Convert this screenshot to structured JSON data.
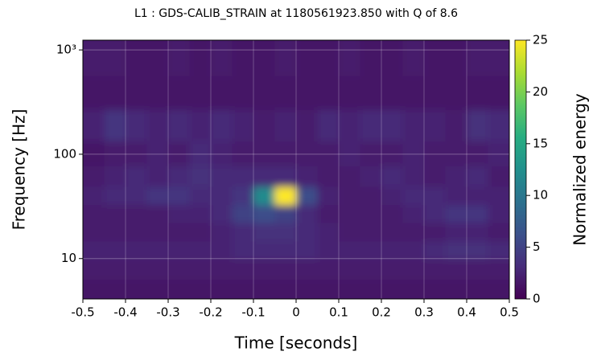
{
  "chart_data": {
    "type": "heatmap",
    "title": "L1 : GDS-CALIB_STRAIN at 1180561923.850 with Q of 8.6",
    "x_label": "Time [seconds]",
    "y_label": "Frequency [Hz]",
    "colorbar_label": "Normalized energy",
    "colormap": "viridis",
    "log_y": true,
    "grid": true,
    "xlim": [
      -0.5,
      0.5
    ],
    "xticks": [
      -0.5,
      -0.4,
      -0.3,
      -0.2,
      -0.1,
      0,
      0.1,
      0.2,
      0.3,
      0.4,
      0.5
    ],
    "ylim": [
      4.1,
      1240
    ],
    "yticks": [
      10,
      100,
      {
        "value": 1000,
        "label": "10³"
      }
    ],
    "clim": [
      0,
      25
    ],
    "cticks": [
      0,
      5,
      10,
      15,
      20,
      25
    ],
    "x": [
      -0.475,
      -0.425,
      -0.375,
      -0.325,
      -0.275,
      -0.225,
      -0.175,
      -0.125,
      -0.075,
      -0.025,
      0.025,
      0.075,
      0.125,
      0.175,
      0.225,
      0.275,
      0.325,
      0.375,
      0.425,
      0.475
    ],
    "y": [
      5,
      8,
      12,
      18,
      27,
      40,
      60,
      100,
      180,
      400,
      800
    ],
    "values": [
      [
        1.5,
        1.5,
        1.5,
        1.5,
        1.5,
        1.5,
        1.5,
        1.5,
        1.5,
        1.5,
        1.5,
        1.5,
        1.5,
        1.5,
        1.5,
        1.5,
        1.5,
        1.5,
        1.5,
        1.5
      ],
      [
        2,
        2,
        2,
        2,
        2,
        2,
        2,
        2,
        2,
        2,
        2,
        2,
        2,
        2,
        2,
        2,
        2,
        2,
        2,
        2
      ],
      [
        2.5,
        2.5,
        2.5,
        2.5,
        2.5,
        2.5,
        2.5,
        3,
        3,
        3,
        3,
        2.5,
        2.5,
        2.5,
        2.5,
        2.5,
        3,
        3.5,
        3.5,
        3
      ],
      [
        2,
        2,
        2,
        2,
        2,
        2,
        2.5,
        3,
        3.5,
        3.5,
        3,
        2.5,
        2,
        2,
        2,
        2,
        2,
        2.5,
        2.5,
        2
      ],
      [
        2,
        2,
        2,
        2,
        2.5,
        2.5,
        3,
        5,
        6,
        5,
        3,
        2,
        2,
        2,
        2,
        2.5,
        3,
        4,
        4,
        2.5
      ],
      [
        2.5,
        3,
        3,
        4,
        4,
        3,
        3,
        4,
        12,
        25,
        6,
        2.5,
        2,
        2,
        2.5,
        3,
        3,
        2.5,
        2.5,
        2.5
      ],
      [
        2,
        2.5,
        3,
        2.5,
        3,
        3.5,
        3,
        3,
        3,
        3,
        2.5,
        2,
        2,
        2.5,
        3,
        2.5,
        2,
        2.5,
        3,
        2
      ],
      [
        1.5,
        2,
        2,
        2.5,
        2,
        3,
        2.5,
        2,
        2,
        2,
        2,
        2,
        2.5,
        2,
        2,
        2.5,
        2,
        2,
        2,
        2.5
      ],
      [
        2.5,
        4,
        3,
        2.5,
        3,
        2.5,
        3,
        2.5,
        2,
        2.5,
        2,
        3,
        2.5,
        3,
        3,
        2.5,
        2.5,
        2,
        3.5,
        3
      ],
      [
        1.5,
        1.5,
        1.5,
        1.5,
        1.5,
        1.5,
        1.5,
        1.5,
        1.5,
        1.5,
        1.5,
        1.5,
        1.5,
        1.5,
        1.5,
        1.5,
        1.5,
        1.5,
        1.5,
        1.5
      ],
      [
        2,
        2,
        1.5,
        1.5,
        2,
        1.5,
        2,
        1.5,
        1.5,
        2,
        1.5,
        1.5,
        2,
        1.5,
        1.5,
        2,
        1.5,
        1.5,
        2,
        2
      ]
    ]
  }
}
